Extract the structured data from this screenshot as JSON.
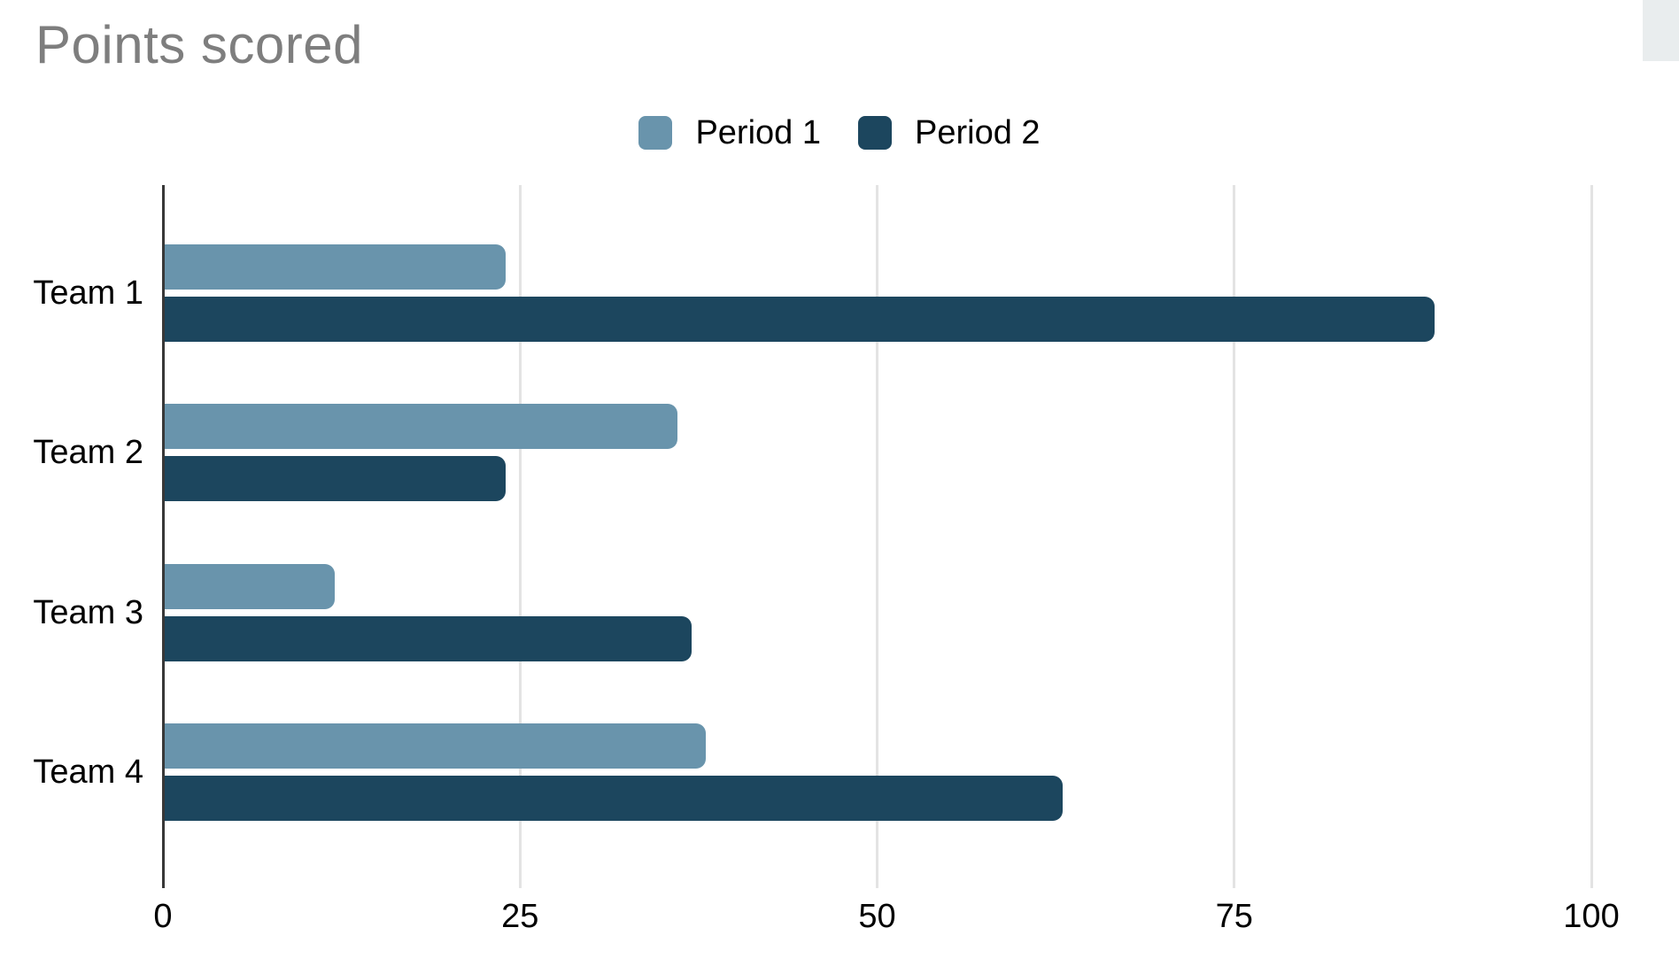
{
  "chart_data": {
    "type": "bar",
    "orientation": "horizontal",
    "title": "Points scored",
    "categories": [
      "Team 1",
      "Team 2",
      "Team 3",
      "Team 4"
    ],
    "series": [
      {
        "name": "Period 1",
        "color": "#6994ac",
        "values": [
          24,
          36,
          12,
          38
        ]
      },
      {
        "name": "Period 2",
        "color": "#1c465e",
        "values": [
          89,
          24,
          37,
          63
        ]
      }
    ],
    "x_axis": {
      "min": 0,
      "max": 100,
      "tick_values": [
        0,
        25,
        50,
        75,
        100
      ],
      "tick_labels": [
        "0",
        "25",
        "50",
        "75",
        "100"
      ]
    },
    "grid": true,
    "legend_position": "top"
  },
  "colors": {
    "title_text": "#7e7e7e",
    "axis_line": "#383838",
    "gridline": "#e3e3e3",
    "label_text": "#000000",
    "background": "#ffffff",
    "corner_panel": "#e9edee",
    "series_1": "#6994ac",
    "series_2": "#1c465e"
  }
}
